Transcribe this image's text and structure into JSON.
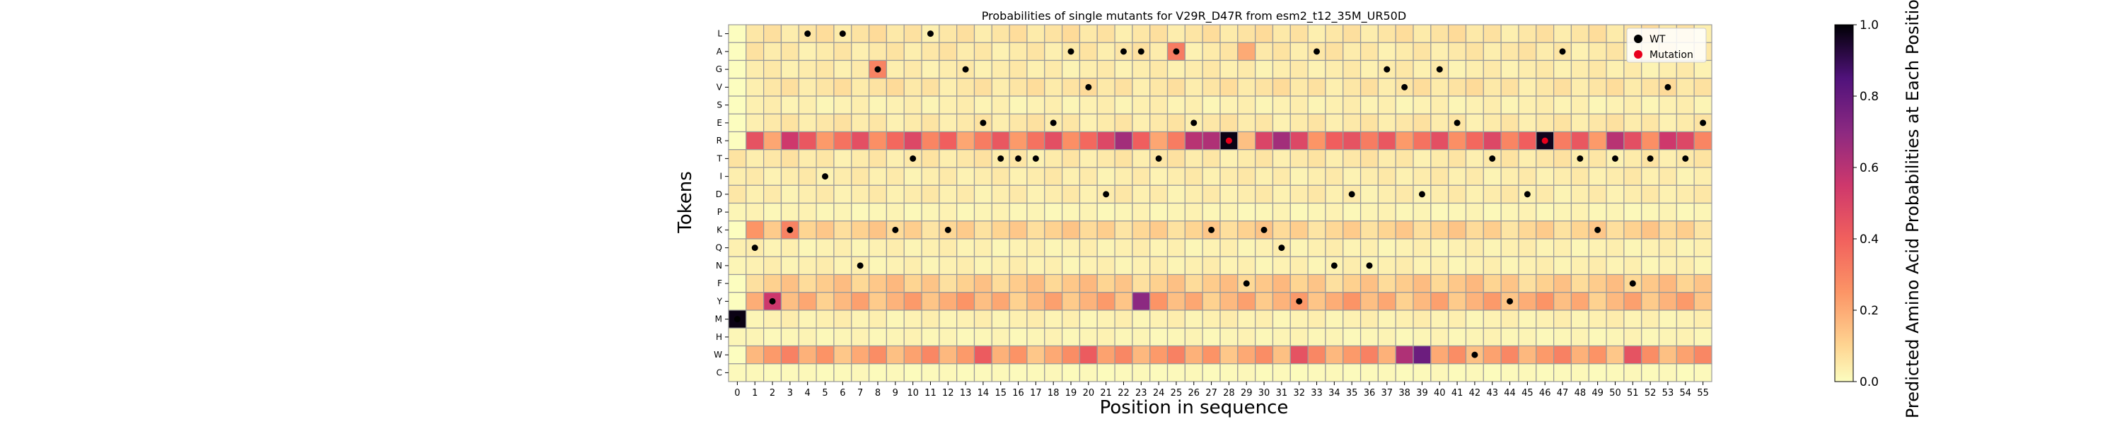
{
  "chart_data": {
    "type": "heatmap",
    "title": "Probabilities of single mutants for V29R_D47R from esm2_t12_35M_UR50D",
    "xlabel": "Position in sequence",
    "ylabel": "Tokens",
    "x_ticks": [
      "0",
      "1",
      "2",
      "3",
      "4",
      "5",
      "6",
      "7",
      "8",
      "9",
      "10",
      "11",
      "12",
      "13",
      "14",
      "15",
      "16",
      "17",
      "18",
      "19",
      "20",
      "21",
      "22",
      "23",
      "24",
      "25",
      "26",
      "27",
      "28",
      "29",
      "30",
      "31",
      "32",
      "33",
      "34",
      "35",
      "36",
      "37",
      "38",
      "39",
      "40",
      "41",
      "42",
      "43",
      "44",
      "45",
      "46",
      "47",
      "48",
      "49",
      "50",
      "51",
      "52",
      "53",
      "54",
      "55"
    ],
    "y_ticks": [
      "L",
      "A",
      "G",
      "V",
      "S",
      "E",
      "R",
      "T",
      "I",
      "D",
      "P",
      "K",
      "Q",
      "N",
      "F",
      "Y",
      "M",
      "H",
      "W",
      "C"
    ],
    "colorbar": {
      "label": "Predicted Amino Acid Probabilities at Each Position",
      "range": [
        0.0,
        1.0
      ],
      "ticks": [
        "0.0",
        "0.2",
        "0.4",
        "0.6",
        "0.8",
        "1.0"
      ],
      "colormap": "magma_r"
    },
    "legend": {
      "position": "top-right",
      "entries": [
        {
          "label": "WT",
          "color": "#000000"
        },
        {
          "label": "Mutation",
          "color": "#e8001c"
        }
      ]
    },
    "token_baseline": [
      0.06,
      0.05,
      0.04,
      0.06,
      0.03,
      0.05,
      0.35,
      0.05,
      0.04,
      0.04,
      0.02,
      0.1,
      0.03,
      0.03,
      0.12,
      0.18,
      0.03,
      0.02,
      0.22,
      0.01
    ],
    "cells": [
      {
        "token": "M",
        "pos": 0,
        "value": 0.98
      },
      {
        "token": "A",
        "pos": 0,
        "value": 0.0
      },
      {
        "token": "G",
        "pos": 0,
        "value": 0.0
      },
      {
        "token": "V",
        "pos": 0,
        "value": 0.0
      },
      {
        "token": "S",
        "pos": 0,
        "value": 0.0
      },
      {
        "token": "E",
        "pos": 0,
        "value": 0.0
      },
      {
        "token": "R",
        "pos": 0,
        "value": 0.0
      },
      {
        "token": "K",
        "pos": 0,
        "value": 0.0
      },
      {
        "token": "L",
        "pos": 0,
        "value": 0.0
      },
      {
        "token": "W",
        "pos": 0,
        "value": 0.0
      },
      {
        "token": "Y",
        "pos": 0,
        "value": 0.0
      },
      {
        "token": "F",
        "pos": 0,
        "value": 0.0
      },
      {
        "token": "R",
        "pos": 1,
        "value": 0.45
      },
      {
        "token": "K",
        "pos": 1,
        "value": 0.25
      },
      {
        "token": "Y",
        "pos": 2,
        "value": 0.55
      },
      {
        "token": "R",
        "pos": 3,
        "value": 0.55
      },
      {
        "token": "K",
        "pos": 3,
        "value": 0.3
      },
      {
        "token": "G",
        "pos": 8,
        "value": 0.3
      },
      {
        "token": "R",
        "pos": 22,
        "value": 0.65
      },
      {
        "token": "Y",
        "pos": 23,
        "value": 0.7
      },
      {
        "token": "A",
        "pos": 25,
        "value": 0.32
      },
      {
        "token": "R",
        "pos": 26,
        "value": 0.6
      },
      {
        "token": "R",
        "pos": 27,
        "value": 0.62
      },
      {
        "token": "R",
        "pos": 28,
        "value": 0.98
      },
      {
        "token": "A",
        "pos": 29,
        "value": 0.2
      },
      {
        "token": "R",
        "pos": 29,
        "value": 0.15
      },
      {
        "token": "R",
        "pos": 30,
        "value": 0.5
      },
      {
        "token": "R",
        "pos": 31,
        "value": 0.65
      },
      {
        "token": "R",
        "pos": 33,
        "value": 0.25
      },
      {
        "token": "R",
        "pos": 35,
        "value": 0.45
      },
      {
        "token": "W",
        "pos": 38,
        "value": 0.62
      },
      {
        "token": "W",
        "pos": 39,
        "value": 0.78
      },
      {
        "token": "R",
        "pos": 46,
        "value": 0.97
      },
      {
        "token": "R",
        "pos": 50,
        "value": 0.6
      },
      {
        "token": "R",
        "pos": 53,
        "value": 0.55
      },
      {
        "token": "W",
        "pos": 32,
        "value": 0.45
      },
      {
        "token": "W",
        "pos": 51,
        "value": 0.45
      },
      {
        "token": "W",
        "pos": 20,
        "value": 0.42
      },
      {
        "token": "W",
        "pos": 14,
        "value": 0.42
      }
    ],
    "wt": [
      {
        "token": "M",
        "pos": 0
      },
      {
        "token": "Q",
        "pos": 1
      },
      {
        "token": "Y",
        "pos": 2
      },
      {
        "token": "K",
        "pos": 3
      },
      {
        "token": "L",
        "pos": 4
      },
      {
        "token": "I",
        "pos": 5
      },
      {
        "token": "L",
        "pos": 6
      },
      {
        "token": "N",
        "pos": 7
      },
      {
        "token": "G",
        "pos": 8
      },
      {
        "token": "K",
        "pos": 9
      },
      {
        "token": "T",
        "pos": 10
      },
      {
        "token": "L",
        "pos": 11
      },
      {
        "token": "K",
        "pos": 12
      },
      {
        "token": "G",
        "pos": 13
      },
      {
        "token": "E",
        "pos": 14
      },
      {
        "token": "T",
        "pos": 15
      },
      {
        "token": "T",
        "pos": 16
      },
      {
        "token": "T",
        "pos": 17
      },
      {
        "token": "E",
        "pos": 18
      },
      {
        "token": "A",
        "pos": 19
      },
      {
        "token": "V",
        "pos": 20
      },
      {
        "token": "D",
        "pos": 21
      },
      {
        "token": "A",
        "pos": 22
      },
      {
        "token": "A",
        "pos": 23
      },
      {
        "token": "T",
        "pos": 24
      },
      {
        "token": "A",
        "pos": 25
      },
      {
        "token": "E",
        "pos": 26
      },
      {
        "token": "K",
        "pos": 27
      },
      {
        "token": "F",
        "pos": 29
      },
      {
        "token": "K",
        "pos": 30
      },
      {
        "token": "Q",
        "pos": 31
      },
      {
        "token": "Y",
        "pos": 32
      },
      {
        "token": "A",
        "pos": 33
      },
      {
        "token": "N",
        "pos": 34
      },
      {
        "token": "D",
        "pos": 35
      },
      {
        "token": "N",
        "pos": 36
      },
      {
        "token": "G",
        "pos": 37
      },
      {
        "token": "V",
        "pos": 38
      },
      {
        "token": "D",
        "pos": 39
      },
      {
        "token": "G",
        "pos": 40
      },
      {
        "token": "E",
        "pos": 41
      },
      {
        "token": "W",
        "pos": 42
      },
      {
        "token": "T",
        "pos": 43
      },
      {
        "token": "Y",
        "pos": 44
      },
      {
        "token": "D",
        "pos": 45
      },
      {
        "token": "A",
        "pos": 47
      },
      {
        "token": "T",
        "pos": 48
      },
      {
        "token": "K",
        "pos": 49
      },
      {
        "token": "T",
        "pos": 50
      },
      {
        "token": "F",
        "pos": 51
      },
      {
        "token": "T",
        "pos": 52
      },
      {
        "token": "V",
        "pos": 53
      },
      {
        "token": "T",
        "pos": 54
      },
      {
        "token": "E",
        "pos": 55
      }
    ],
    "mutations": [
      {
        "token": "R",
        "pos": 28
      },
      {
        "token": "R",
        "pos": 46
      }
    ]
  }
}
